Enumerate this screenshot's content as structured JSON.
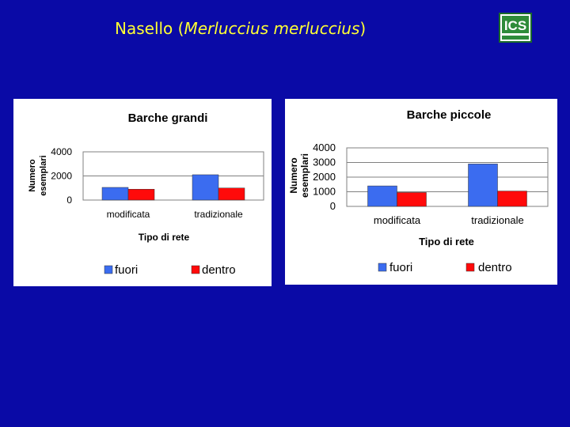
{
  "slide": {
    "title_prefix": "Nasello (",
    "title_italic": "Merluccius merluccius",
    "title_suffix": ")"
  },
  "logo": {
    "text": "ICS",
    "icon": "institution-logo"
  },
  "colors": {
    "background": "#0a0aa6",
    "title": "#ffff33",
    "fuori": "#3b6cf0",
    "dentro": "#ff0a0a"
  },
  "chart_data": [
    {
      "type": "bar",
      "title": "Barche grandi",
      "xlabel": "Tipo di rete",
      "ylabel_lines": [
        "Numero",
        "esemplari"
      ],
      "categories": [
        "modificata",
        "tradizionale"
      ],
      "yticks": [
        "0",
        "2000",
        "4000"
      ],
      "ylim": [
        0,
        4000
      ],
      "grid": true,
      "legend_position": "bottom",
      "series": [
        {
          "name": "fuori",
          "values": [
            1050,
            2100
          ]
        },
        {
          "name": "dentro",
          "values": [
            900,
            1000
          ]
        }
      ]
    },
    {
      "type": "bar",
      "title": "Barche piccole",
      "xlabel": "Tipo di rete",
      "ylabel_lines": [
        "Numero",
        "esemplari"
      ],
      "categories": [
        "modificata",
        "tradizionale"
      ],
      "yticks": [
        "0",
        "1000",
        "2000",
        "3000",
        "4000"
      ],
      "ylim": [
        0,
        4000
      ],
      "grid": true,
      "legend_position": "bottom",
      "series": [
        {
          "name": "fuori",
          "values": [
            1400,
            2900
          ]
        },
        {
          "name": "dentro",
          "values": [
            950,
            1050
          ]
        }
      ]
    }
  ]
}
